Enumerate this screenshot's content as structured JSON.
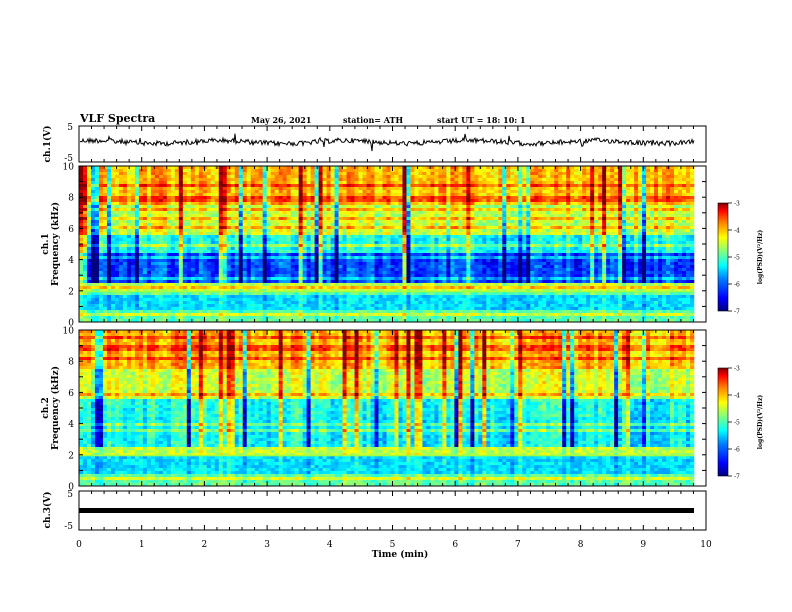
{
  "header": {
    "title": "VLF Spectra",
    "date": "May 26, 2021",
    "station": "station= ATH",
    "start": "start UT =   18: 10: 1"
  },
  "chart_data": [
    {
      "type": "line",
      "name": "channel-1-waveform",
      "ylabel": "ch.1(V)",
      "ylim": [
        -5,
        5
      ],
      "yticks": [
        "5",
        "-5"
      ],
      "xlim": [
        0,
        10
      ]
    },
    {
      "type": "heatmap",
      "name": "channel-1-spectrogram",
      "ylabel_top": "ch.1",
      "ylabel": "Frequency (kHz)",
      "ylim": [
        0,
        10
      ],
      "yticks": [
        "0",
        "2",
        "4",
        "6",
        "8",
        "10"
      ],
      "xlim": [
        0,
        10
      ],
      "colorbar": {
        "label": "log(PSD)(V²/Hz)",
        "range": [
          -7,
          -3
        ],
        "ticks": [
          "-3",
          "-4",
          "-5",
          "-6",
          "-7"
        ]
      }
    },
    {
      "type": "heatmap",
      "name": "channel-2-spectrogram",
      "ylabel_top": "ch.2",
      "ylabel": "Frequency (kHz)",
      "ylim": [
        0,
        10
      ],
      "yticks": [
        "0",
        "2",
        "4",
        "6",
        "8",
        "10"
      ],
      "xlim": [
        0,
        10
      ],
      "colorbar": {
        "label": "log(PSD)(V²/Hz)",
        "range": [
          -7,
          -3
        ],
        "ticks": [
          "-3",
          "-4",
          "-5",
          "-6",
          "-7"
        ]
      }
    },
    {
      "type": "line",
      "name": "channel-3-waveform",
      "ylabel": "ch.3(V)",
      "ylim": [
        -5,
        5
      ],
      "yticks": [
        "5",
        "-5"
      ],
      "xlim": [
        0,
        10
      ],
      "xlabel": "Time (min)",
      "xticks": [
        "0",
        "1",
        "2",
        "3",
        "4",
        "5",
        "6",
        "7",
        "8",
        "9",
        "10"
      ]
    }
  ],
  "colors": {
    "colormap": [
      "#00007f",
      "#0000ff",
      "#0080ff",
      "#00ffff",
      "#80ff80",
      "#ffff00",
      "#ff8000",
      "#ff0000",
      "#7f0000"
    ]
  }
}
